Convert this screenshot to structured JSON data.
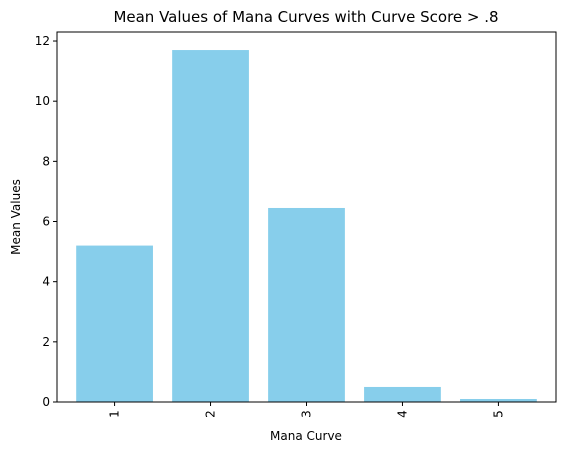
{
  "chart_data": {
    "type": "bar",
    "title": "Mean Values of Mana Curves with Curve Score > .8",
    "xlabel": "Mana Curve",
    "ylabel": "Mean Values",
    "categories": [
      "1",
      "2",
      "3",
      "4",
      "5"
    ],
    "values": [
      5.2,
      11.7,
      6.45,
      0.5,
      0.1
    ],
    "ylim": [
      0,
      12.3
    ],
    "yticks": [
      0,
      2,
      4,
      6,
      8,
      10,
      12
    ],
    "grid": false,
    "bar_color": "#87CEEB"
  }
}
